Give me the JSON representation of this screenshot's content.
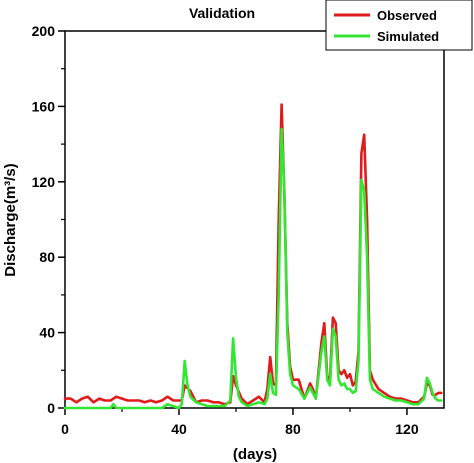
{
  "chart_data": {
    "type": "line",
    "title": "Validation",
    "xlabel": "(days)",
    "ylabel": "Discharge(m³/s)",
    "xlim": [
      0,
      133
    ],
    "ylim": [
      0,
      200
    ],
    "xticks": [
      0,
      40,
      80,
      120
    ],
    "yticks": [
      0,
      40,
      80,
      120,
      160,
      200
    ],
    "x_minor_step": 20,
    "y_minor_step": 20,
    "grid": false,
    "legend_position": "top-right",
    "series": [
      {
        "name": "Observed",
        "color": "#e01b1b",
        "points": [
          [
            0,
            5
          ],
          [
            2,
            5
          ],
          [
            4,
            3
          ],
          [
            6,
            5
          ],
          [
            8,
            6
          ],
          [
            10,
            3
          ],
          [
            12,
            5
          ],
          [
            14,
            4
          ],
          [
            16,
            4
          ],
          [
            18,
            6
          ],
          [
            20,
            5
          ],
          [
            22,
            4
          ],
          [
            24,
            4
          ],
          [
            26,
            4
          ],
          [
            28,
            3
          ],
          [
            30,
            4
          ],
          [
            32,
            3
          ],
          [
            34,
            4
          ],
          [
            36,
            6
          ],
          [
            38,
            4
          ],
          [
            40,
            4
          ],
          [
            41,
            4
          ],
          [
            42,
            12
          ],
          [
            44,
            9
          ],
          [
            46,
            3
          ],
          [
            48,
            4
          ],
          [
            50,
            4
          ],
          [
            52,
            3
          ],
          [
            54,
            3
          ],
          [
            56,
            2
          ],
          [
            58,
            3
          ],
          [
            59,
            17
          ],
          [
            60,
            12
          ],
          [
            62,
            5
          ],
          [
            64,
            2
          ],
          [
            66,
            4
          ],
          [
            68,
            6
          ],
          [
            70,
            3
          ],
          [
            71,
            10
          ],
          [
            72,
            27
          ],
          [
            73,
            13
          ],
          [
            74,
            12
          ],
          [
            75,
            100
          ],
          [
            76,
            161
          ],
          [
            77,
            112
          ],
          [
            78,
            45
          ],
          [
            79,
            22
          ],
          [
            80,
            15
          ],
          [
            82,
            15
          ],
          [
            84,
            5
          ],
          [
            86,
            13
          ],
          [
            87,
            10
          ],
          [
            88,
            5
          ],
          [
            90,
            35
          ],
          [
            91,
            45
          ],
          [
            92,
            17
          ],
          [
            93,
            15
          ],
          [
            94,
            48
          ],
          [
            95,
            45
          ],
          [
            96,
            20
          ],
          [
            97,
            18
          ],
          [
            98,
            20
          ],
          [
            99,
            16
          ],
          [
            100,
            18
          ],
          [
            101,
            12
          ],
          [
            102,
            14
          ],
          [
            103,
            30
          ],
          [
            104,
            135
          ],
          [
            105,
            145
          ],
          [
            106,
            100
          ],
          [
            107,
            20
          ],
          [
            108,
            15
          ],
          [
            110,
            10
          ],
          [
            112,
            8
          ],
          [
            114,
            6
          ],
          [
            116,
            5
          ],
          [
            118,
            5
          ],
          [
            120,
            4
          ],
          [
            122,
            3
          ],
          [
            124,
            3
          ],
          [
            126,
            6
          ],
          [
            127,
            13
          ],
          [
            128,
            12
          ],
          [
            129,
            7
          ],
          [
            130,
            7
          ],
          [
            131,
            8
          ],
          [
            132,
            8
          ]
        ]
      },
      {
        "name": "Simulated",
        "color": "#33e633",
        "points": [
          [
            0,
            0
          ],
          [
            4,
            0
          ],
          [
            8,
            0
          ],
          [
            10,
            0
          ],
          [
            12,
            0
          ],
          [
            14,
            0
          ],
          [
            16,
            0
          ],
          [
            17,
            2
          ],
          [
            18,
            0
          ],
          [
            20,
            0
          ],
          [
            24,
            0
          ],
          [
            28,
            0
          ],
          [
            32,
            0
          ],
          [
            34,
            0
          ],
          [
            36,
            2
          ],
          [
            38,
            1
          ],
          [
            40,
            0
          ],
          [
            41,
            2
          ],
          [
            42,
            25
          ],
          [
            43,
            12
          ],
          [
            44,
            6
          ],
          [
            46,
            3
          ],
          [
            48,
            2
          ],
          [
            50,
            1
          ],
          [
            52,
            1
          ],
          [
            54,
            1
          ],
          [
            56,
            1
          ],
          [
            58,
            4
          ],
          [
            59,
            37
          ],
          [
            60,
            16
          ],
          [
            61,
            6
          ],
          [
            62,
            3
          ],
          [
            64,
            1
          ],
          [
            66,
            2
          ],
          [
            68,
            3
          ],
          [
            70,
            2
          ],
          [
            71,
            5
          ],
          [
            72,
            18
          ],
          [
            73,
            8
          ],
          [
            74,
            7
          ],
          [
            75,
            60
          ],
          [
            76,
            148
          ],
          [
            77,
            115
          ],
          [
            78,
            40
          ],
          [
            79,
            18
          ],
          [
            80,
            12
          ],
          [
            82,
            10
          ],
          [
            84,
            5
          ],
          [
            86,
            11
          ],
          [
            87,
            8
          ],
          [
            88,
            5
          ],
          [
            90,
            30
          ],
          [
            91,
            38
          ],
          [
            92,
            15
          ],
          [
            93,
            12
          ],
          [
            94,
            42
          ],
          [
            95,
            38
          ],
          [
            96,
            15
          ],
          [
            97,
            12
          ],
          [
            98,
            13
          ],
          [
            99,
            10
          ],
          [
            100,
            10
          ],
          [
            101,
            8
          ],
          [
            102,
            9
          ],
          [
            103,
            25
          ],
          [
            104,
            121
          ],
          [
            105,
            115
          ],
          [
            106,
            80
          ],
          [
            107,
            15
          ],
          [
            108,
            10
          ],
          [
            110,
            8
          ],
          [
            112,
            6
          ],
          [
            114,
            5
          ],
          [
            116,
            4
          ],
          [
            118,
            4
          ],
          [
            120,
            3
          ],
          [
            122,
            2
          ],
          [
            124,
            2
          ],
          [
            126,
            5
          ],
          [
            127,
            16
          ],
          [
            128,
            13
          ],
          [
            129,
            8
          ],
          [
            130,
            5
          ],
          [
            131,
            4
          ],
          [
            132,
            4
          ]
        ]
      }
    ]
  }
}
